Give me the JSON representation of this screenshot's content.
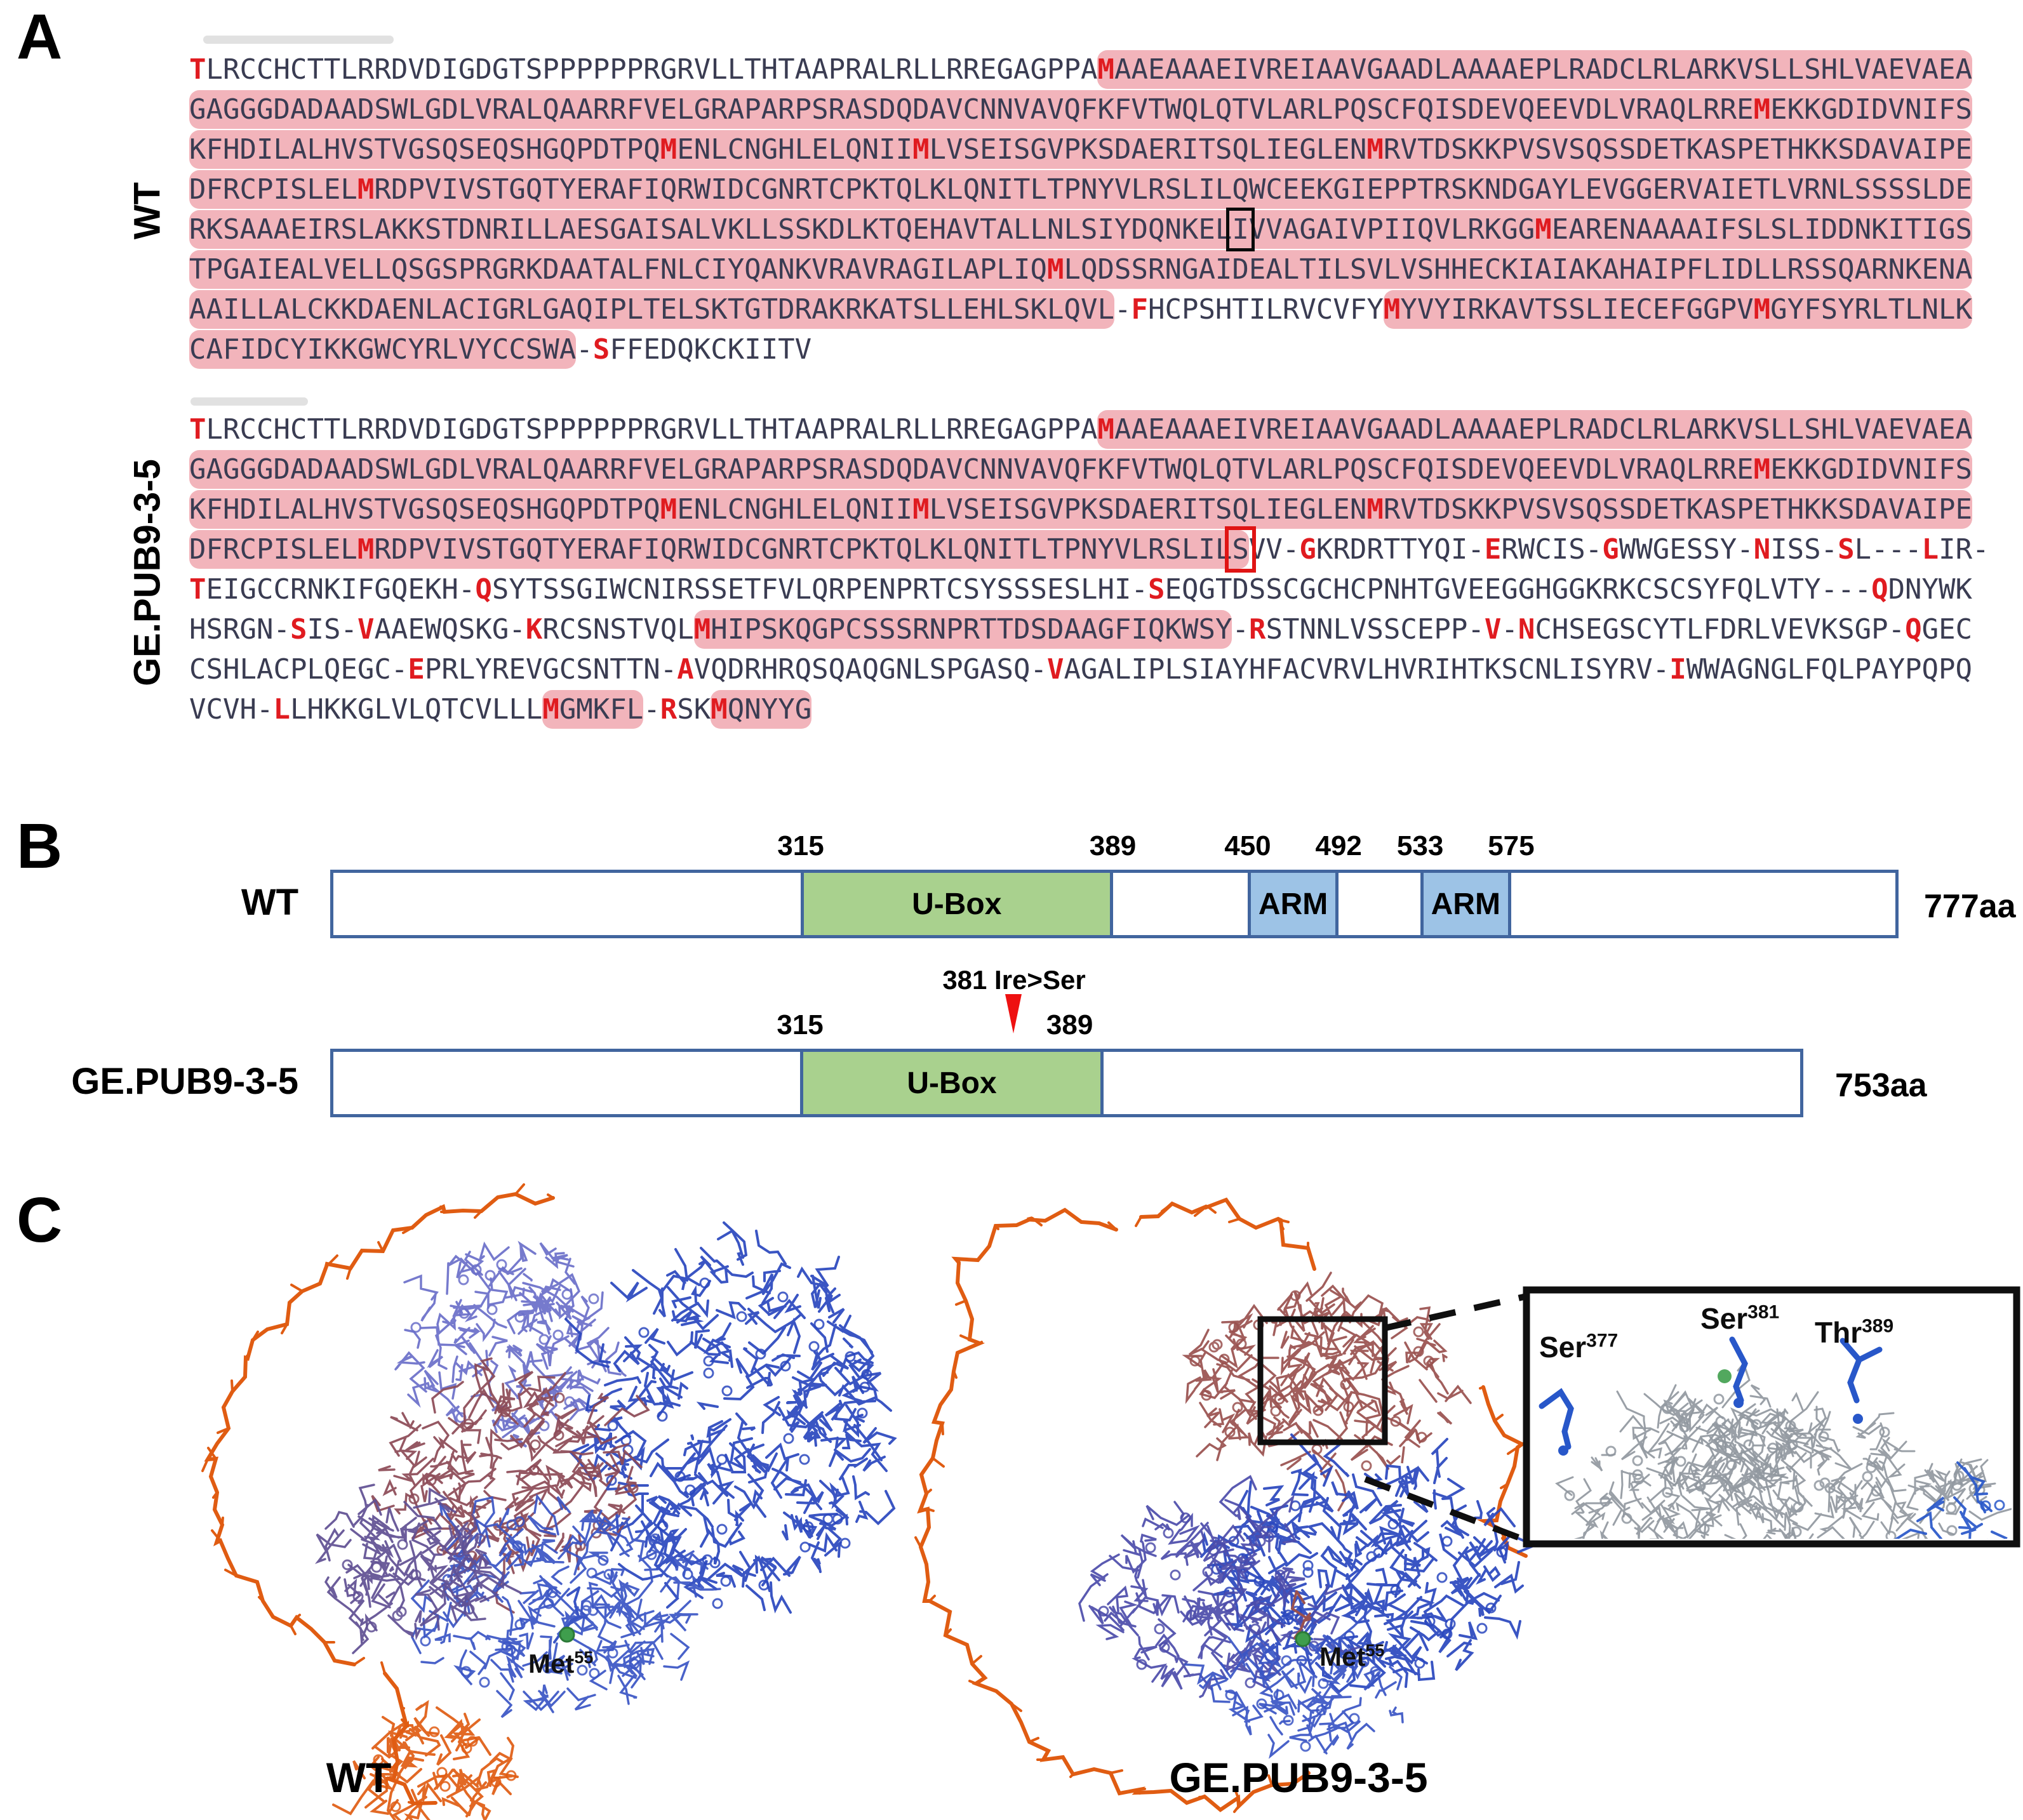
{
  "panels": {
    "a": "A",
    "b": "B",
    "c": "C"
  },
  "panel_a": {
    "row_labels": {
      "wt": "WT",
      "ge": "GE.PUB9-3-5"
    },
    "colors": {
      "highlight": "#f2b4bb",
      "red_letter": "#e01b20",
      "text": "#3a3c52"
    },
    "wt_lines": [
      [
        [
          "T",
          "r"
        ],
        [
          "LRCCHCTTLRRDVDIGDGTSPPPPPPRGRVLLTHTAAPRALRLLRREGAGPPA",
          ""
        ],
        [
          "M",
          "rh"
        ],
        [
          "AAEAAAEIVREIAAVGAADLAAAAEPLRADCLRLARKVSLLSHLVAEVAEA",
          "h"
        ]
      ],
      [
        [
          "GAGGGDADAADSWLGDLVRALQAARRFVELGRAPARPSRASDQDAVCNNVAVQFKFVTWQLQTVLARLPQSCFQISDEVQEEVDLVRAQLRRE",
          "h"
        ],
        [
          "M",
          "rh"
        ],
        [
          "EKKGDIDVNIFS",
          "h"
        ]
      ],
      [
        [
          "KFHDILALHVSTVGSQSEQSHGQPDTPQ",
          "h"
        ],
        [
          "M",
          "rh"
        ],
        [
          "ENLCNGHLELQNII",
          "h"
        ],
        [
          "M",
          "rh"
        ],
        [
          "LVSEISGVPKSDAERITSQLIEGLEN",
          "h"
        ],
        [
          "M",
          "rh"
        ],
        [
          "RVTDSKKPVSVSQSSDETKASPETHKKSDAVAIPE",
          "h"
        ]
      ],
      [
        [
          "DFRCPISLEL",
          "h"
        ],
        [
          "M",
          "rh"
        ],
        [
          "RDPVIVSTGQTYERAFIQRWIDCGNRTCPKTQLKLQNITLTPNYVLRSLILQWCEEKGIEPPTRSKNDGAYLEVGGERVAIETLVRNLSSSSLDE",
          "h"
        ]
      ],
      [
        [
          "RKSAAAEIRSLAKKSTDNRILLAESGAISALVKLLSSKDLKTQEHAVTALLNLSIYDQNKEL",
          "h"
        ],
        [
          "I",
          "hB"
        ],
        [
          "VVAGAIVPIIQVLRKGG",
          "h"
        ],
        [
          "M",
          "rh"
        ],
        [
          "EARENAAAAIFSLSLIDDNKITIGS",
          "h"
        ]
      ],
      [
        [
          "TPGAIEALVELLQSGSPRGRKDAATALFNLCIYQANKVRAVRAGILAPLIQ",
          "h"
        ],
        [
          "M",
          "rh"
        ],
        [
          "LQDSSRNGAIDEALTILSVLVSHHECKIAIAKAHAIPFLIDLLRSSQARNKENA",
          "h"
        ]
      ],
      [
        [
          "AAILLALCKKDAENLACIGRLGAQIPLTELSKTGTDRAKRKATSLLEHLSKLQVL",
          "h"
        ],
        [
          "-",
          ""
        ],
        [
          "F",
          "r"
        ],
        [
          "HCPSHTILRVCVFY",
          ""
        ],
        [
          "M",
          "rh"
        ],
        [
          "YVYIRKAVTSSLIECEFGGPV",
          "h"
        ],
        [
          "M",
          "rh"
        ],
        [
          "GYFSYRLTLNLK",
          "h"
        ]
      ],
      [
        [
          "CAFIDCYIKKGWCYRLVYCCSWA",
          "h"
        ],
        [
          "-",
          ""
        ],
        [
          "S",
          "r"
        ],
        [
          "FFEDQKCKIITV",
          ""
        ]
      ]
    ],
    "ge_lines": [
      [
        [
          "T",
          "r"
        ],
        [
          "LRCCHCTTLRRDVDIGDGTSPPPPPPRGRVLLTHTAAPRALRLLRREGAGPPA",
          ""
        ],
        [
          "M",
          "rh"
        ],
        [
          "AAEAAAEIVREIAAVGAADLAAAAEPLRADCLRLARKVSLLSHLVAEVAEA",
          "h"
        ]
      ],
      [
        [
          "GAGGGDADAADSWLGDLVRALQAARRFVELGRAPARPSRASDQDAVCNNVAVQFKFVTWQLQTVLARLPQSCFQISDEVQEEVDLVRAQLRRE",
          "h"
        ],
        [
          "M",
          "rh"
        ],
        [
          "EKKGDIDVNIFS",
          "h"
        ]
      ],
      [
        [
          "KFHDILALHVSTVGSQSEQSHGQPDTPQ",
          "h"
        ],
        [
          "M",
          "rh"
        ],
        [
          "ENLCNGHLELQNII",
          "h"
        ],
        [
          "M",
          "rh"
        ],
        [
          "LVSEISGVPKSDAERITSQLIEGLEN",
          "h"
        ],
        [
          "M",
          "rh"
        ],
        [
          "RVTDSKKPVSVSQSSDETKASPETHKKSDAVAIPE",
          "h"
        ]
      ],
      [
        [
          "DFRCPISLEL",
          "h"
        ],
        [
          "M",
          "rh"
        ],
        [
          "RDPVIVSTGQTYERAFIQRWIDCGNRTCPKTQLKLQNITLTPNYVLRSLIL",
          "h"
        ],
        [
          "S",
          "hR"
        ],
        [
          "VV-",
          ""
        ],
        [
          "G",
          "r"
        ],
        [
          "KRDRTTYQI-",
          ""
        ],
        [
          "E",
          "r"
        ],
        [
          "RWCIS-",
          ""
        ],
        [
          "G",
          "r"
        ],
        [
          "WWGESSY-",
          ""
        ],
        [
          "N",
          "r"
        ],
        [
          "ISS-",
          ""
        ],
        [
          "S",
          "r"
        ],
        [
          "L---",
          ""
        ],
        [
          "L",
          "r"
        ],
        [
          "IR-",
          ""
        ]
      ],
      [
        [
          "T",
          "r"
        ],
        [
          "EIGCCRNKIFGQEKH-",
          ""
        ],
        [
          "Q",
          "r"
        ],
        [
          "SYTSSGIWCNIRSSETFVLQRPENPRTCSYSSSESLHI-",
          ""
        ],
        [
          "S",
          "r"
        ],
        [
          "EQGTDSSCGCHCPNHTGVEEGGHGGKRKCSCSYFQLVTY---",
          ""
        ],
        [
          "Q",
          "r"
        ],
        [
          "DNYWK",
          ""
        ]
      ],
      [
        [
          "HSRGN-",
          ""
        ],
        [
          "S",
          "r"
        ],
        [
          "IS-",
          ""
        ],
        [
          "V",
          "r"
        ],
        [
          "AAEWQSKG-",
          ""
        ],
        [
          "K",
          "r"
        ],
        [
          "RCSNSTVQL",
          ""
        ],
        [
          "M",
          "rh"
        ],
        [
          "HIPSKQGPCSSSRNPRTTDSDAAGFIQKWSY",
          "h"
        ],
        [
          "-",
          ""
        ],
        [
          "R",
          "r"
        ],
        [
          "STNNLVSSCEPP-",
          ""
        ],
        [
          "V",
          "r"
        ],
        [
          "-",
          ""
        ],
        [
          "N",
          "r"
        ],
        [
          "CHSEGSCYTLFDRLVEVKSGP-",
          ""
        ],
        [
          "Q",
          "r"
        ],
        [
          "GEC",
          ""
        ]
      ],
      [
        [
          "CSHLACPLQEGC-",
          ""
        ],
        [
          "E",
          "r"
        ],
        [
          "PRLYREVGCSNTTN-",
          ""
        ],
        [
          "A",
          "r"
        ],
        [
          "VQDRHRQSQAQGNLSPGASQ-",
          ""
        ],
        [
          "V",
          "r"
        ],
        [
          "AGALIPLSIAYHFACVRVLHVRIHTKSCNLISYRV-",
          ""
        ],
        [
          "I",
          "r"
        ],
        [
          "WWAGNGLFQLPAYPQPQ",
          ""
        ]
      ],
      [
        [
          "VCVH-",
          ""
        ],
        [
          "L",
          "r"
        ],
        [
          "LHKKGLVLQTCVLLL",
          ""
        ],
        [
          "M",
          "rh"
        ],
        [
          "GMKFL",
          "h"
        ],
        [
          "-",
          ""
        ],
        [
          "R",
          "r"
        ],
        [
          "SK",
          ""
        ],
        [
          "M",
          "rh"
        ],
        [
          "QNYYG",
          "h"
        ]
      ]
    ]
  },
  "panel_b": {
    "border_color": "#41659e",
    "bars": [
      {
        "name": "WT",
        "length_label": "777aa",
        "ticks": [
          {
            "t": "315",
            "x": 30.0
          },
          {
            "t": "389",
            "x": 49.9
          },
          {
            "t": "450",
            "x": 58.5
          },
          {
            "t": "492",
            "x": 64.3
          },
          {
            "t": "533",
            "x": 69.5
          },
          {
            "t": "575",
            "x": 75.3
          }
        ],
        "domains": [
          {
            "label": "U-Box",
            "x": 30.0,
            "w": 19.9,
            "color": "#a9d18e"
          },
          {
            "label": "ARM",
            "x": 58.5,
            "w": 5.8,
            "color": "#9dc3e6"
          },
          {
            "label": "ARM",
            "x": 69.5,
            "w": 5.8,
            "color": "#9dc3e6"
          }
        ]
      },
      {
        "name": "GE.PUB9-3-5",
        "length_label": "753aa",
        "ticks": [
          {
            "t": "315",
            "x": 31.9
          },
          {
            "t": "389",
            "x": 50.2
          }
        ],
        "domains": [
          {
            "label": "U-Box",
            "x": 31.9,
            "w": 20.6,
            "color": "#a9d18e"
          }
        ],
        "mutation": {
          "label": "381 Ire>Ser",
          "x": 46.4
        }
      }
    ]
  },
  "panel_c": {
    "structures": [
      {
        "caption": "WT",
        "met_base": "Met",
        "met_sup": "55"
      },
      {
        "caption": "GE.PUB9-3-5",
        "met_base": "Met",
        "met_sup": "55"
      }
    ],
    "inset_labels": [
      {
        "base": "Ser",
        "sup": "377"
      },
      {
        "base": "Ser",
        "sup": "381"
      },
      {
        "base": "Thr",
        "sup": "389"
      }
    ],
    "colors": {
      "chain_orange": "#e05c12",
      "mesh_blue_dark": "#2946be",
      "mesh_blue": "#3a55c4",
      "mesh_lavender": "#6a6fc9",
      "mesh_maroon": "#8c4a56",
      "mesh_maroon2": "#99504e",
      "mesh_purple": "#5f4f93",
      "mesh_purple2": "#4c4caa",
      "mesh_gray": "#9198a0",
      "residue_blue": "#2857c9",
      "atom_green": "#3f9e4d",
      "box_black": "#0f0f0f"
    }
  }
}
